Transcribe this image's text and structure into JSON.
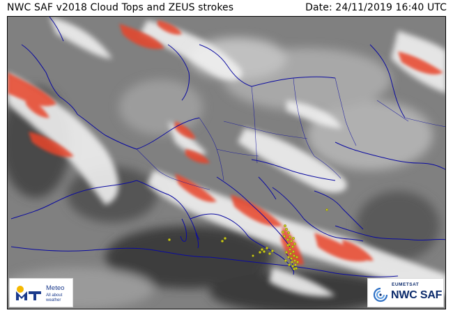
{
  "header": {
    "title": "NWC SAF v2018 Cloud Tops and ZEUS strokes",
    "date": "Date: 24/11/2019 16:40 UTC"
  },
  "map": {
    "background_color": "#7d7d7d",
    "coastline_color": "#0a0aa0",
    "high_cloud_color": "#e8442c",
    "cloud_white": "#f4f4f4",
    "lightning_color": "#c8c81e",
    "icons": [
      "coastline-lines",
      "lightning-stroke-markers"
    ]
  },
  "logos": {
    "meteo": {
      "name": "Meteo",
      "tagline": "All about weather",
      "color": "#1a3a8c"
    },
    "nwcsaf": {
      "org": "EUMETSAT",
      "name": "NWC SAF",
      "color": "#0b2a6b"
    }
  }
}
